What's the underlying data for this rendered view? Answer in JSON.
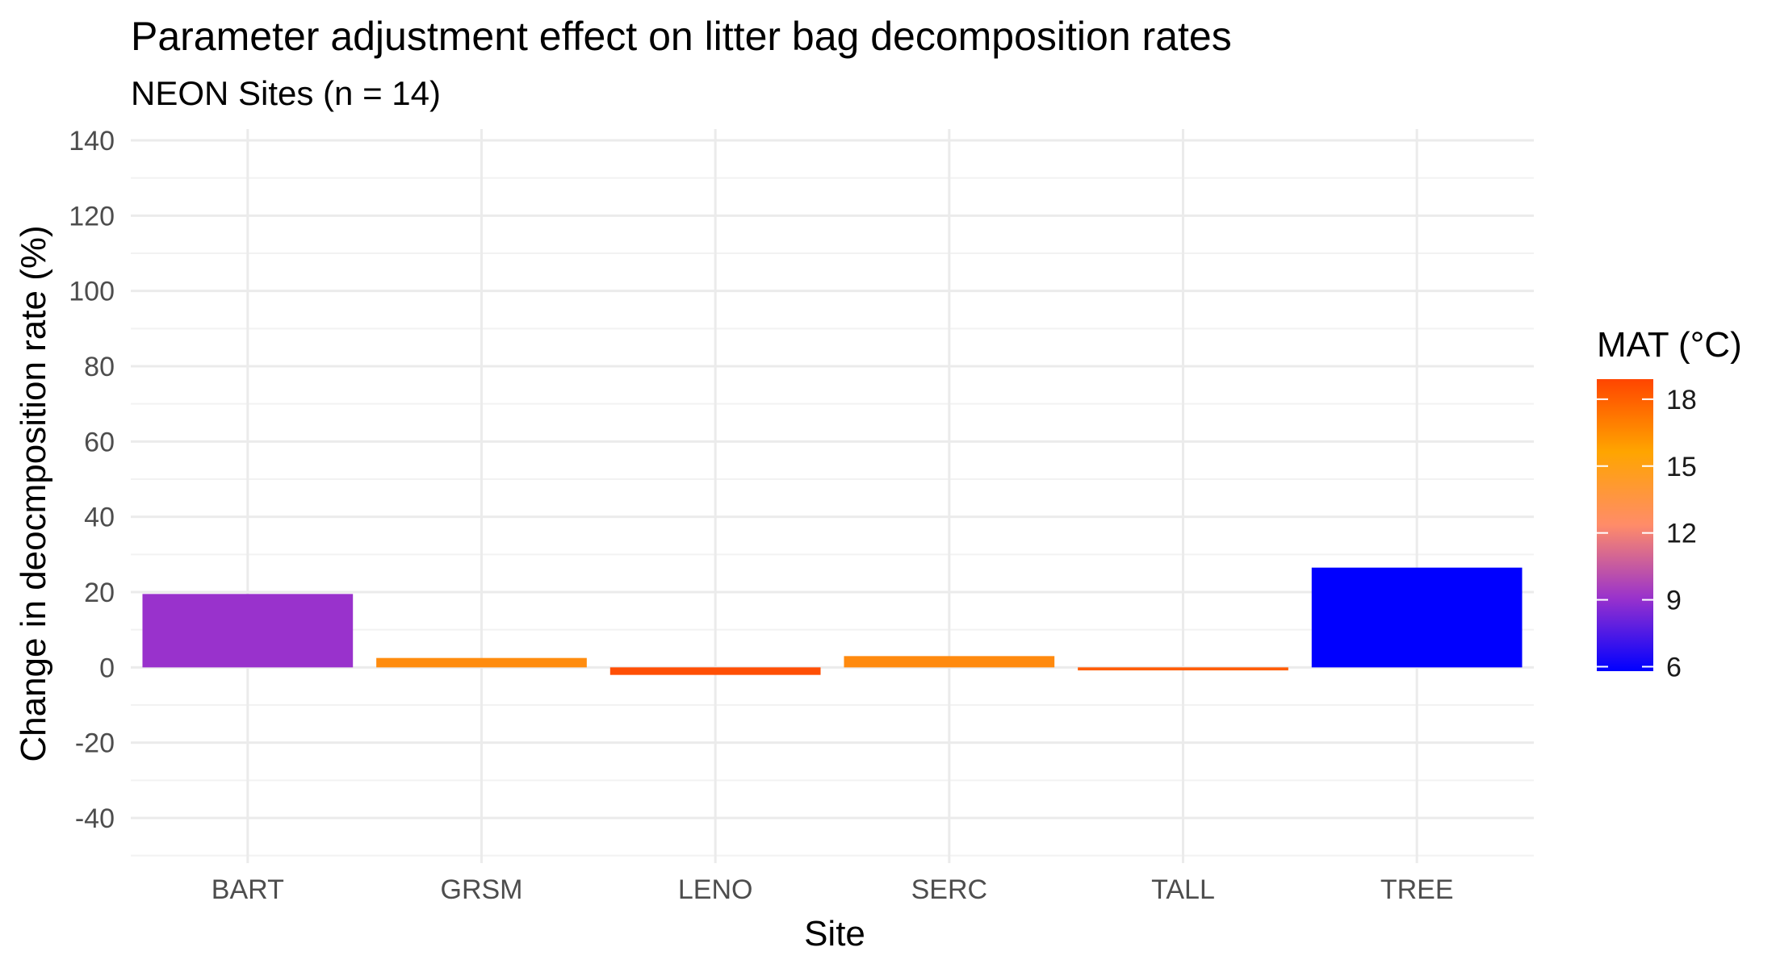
{
  "chart_data": {
    "type": "bar",
    "title": "Parameter adjustment effect on litter bag decomposition rates",
    "subtitle": "NEON Sites (n = 14)",
    "xlabel": "Site",
    "ylabel": "Change in deocmposition rate (%)",
    "categories": [
      "BART",
      "GRSM",
      "LENO",
      "SERC",
      "TALL",
      "TREE"
    ],
    "values": [
      19.5,
      2.5,
      -2.0,
      3.0,
      -0.8,
      26.5
    ],
    "mat_c": [
      8.1,
      14.3,
      18.4,
      14.7,
      17.6,
      6.0
    ],
    "bar_colors": [
      "#9932cc",
      "#ff8c0f",
      "#ff4f05",
      "#ff8a0f",
      "#ff5c05",
      "#0000ff"
    ],
    "ylim": [
      -52,
      143
    ],
    "yticks": [
      -40,
      -20,
      0,
      20,
      40,
      60,
      80,
      100,
      120,
      140
    ],
    "ytick_labels": [
      "-40",
      "-20",
      "0",
      "20",
      "40",
      "60",
      "80",
      "100",
      "120",
      "140"
    ],
    "grid": true,
    "legend": {
      "title": "MAT (°C)",
      "placement": "right",
      "range": [
        5.8,
        18.9
      ],
      "ticks": [
        6,
        9,
        12,
        15,
        18
      ],
      "tick_labels": [
        "6",
        "9",
        "12",
        "15",
        "18"
      ],
      "gradient_colors": [
        "#0000ff",
        "#9932cc",
        "#ff8c69",
        "#ffa500",
        "#ff4500"
      ]
    }
  }
}
